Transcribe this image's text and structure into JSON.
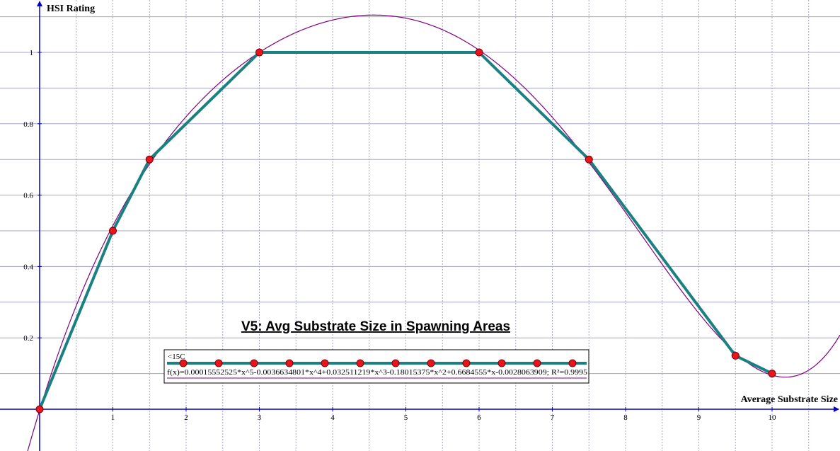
{
  "chart_data": {
    "type": "line",
    "title": "V5: Avg Substrate Size in Spawning Areas",
    "xlabel": "Average Substrate Size",
    "ylabel": "HSI Rating",
    "xlim": [
      0,
      10.65
    ],
    "ylim": [
      0,
      1.1
    ],
    "grid": true,
    "x_ticks": [
      "1",
      "2",
      "3",
      "4",
      "5",
      "6",
      "7",
      "8",
      "9",
      "10"
    ],
    "y_ticks": [
      "0.2",
      "0.4",
      "0.6",
      "0.8",
      "1"
    ],
    "series": [
      {
        "name": "<15C",
        "color": "#1a8080",
        "marker_color": "#e8141e",
        "x": [
          0,
          1,
          1.5,
          3,
          6,
          7.5,
          9.5,
          10
        ],
        "y": [
          0,
          0.5,
          0.7,
          1,
          1,
          0.7,
          0.15,
          0.1
        ]
      }
    ],
    "trendline": {
      "label": "f(x)=0.00015552525*x^5-0.0036634801*x^4+0.032511219*x^3-0.18015375*x^2+0.6684555*x-0.0028063909; R²=0.9995",
      "color": "#800080",
      "coefficients": [
        -0.0028063909,
        0.6684555,
        -0.18015375,
        0.032511219,
        -0.0036634801,
        0.00015552525
      ]
    },
    "legend": {
      "placement": "bottom-center",
      "entries": [
        "<15C"
      ]
    },
    "colors": {
      "axis": "#0000c0",
      "grid": "#a6a6c8",
      "series_line": "#1a8080",
      "marker": "#e8141e",
      "trend": "#800080"
    }
  }
}
